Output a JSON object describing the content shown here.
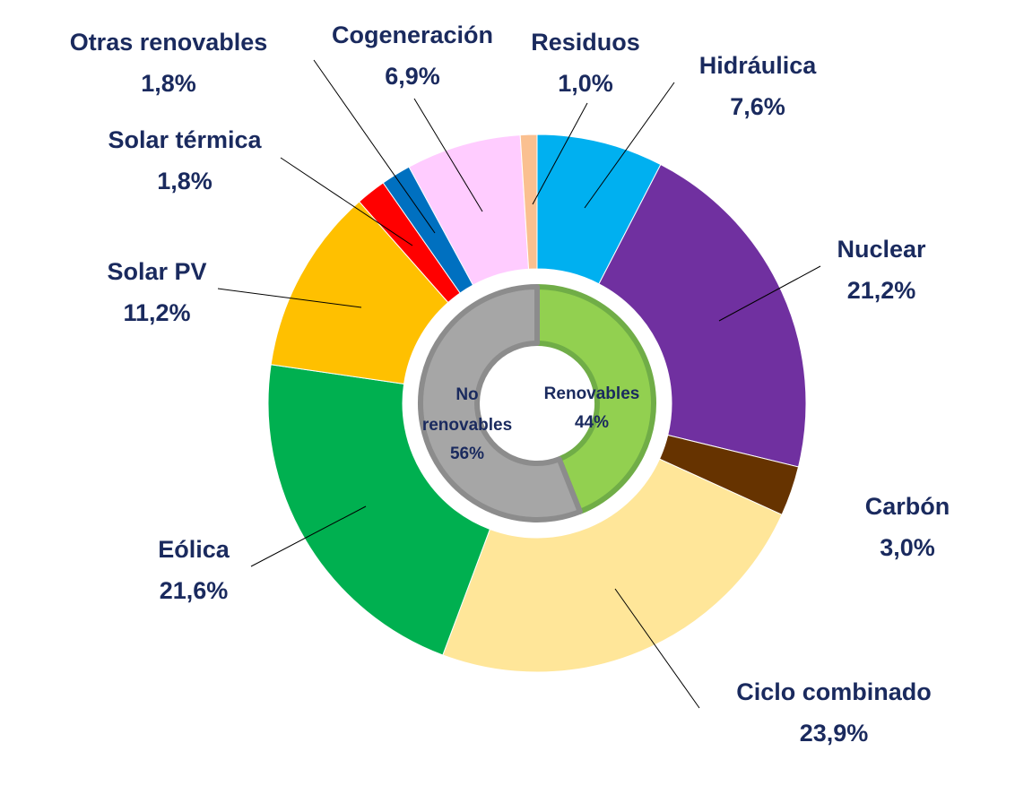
{
  "chart_data": {
    "type": "donut",
    "outer_ring": [
      {
        "label": "Hidráulica",
        "value_text": "7,6%",
        "value": 7.6,
        "color": "#00b0f0"
      },
      {
        "label": "Nuclear",
        "value_text": "21,2%",
        "value": 21.2,
        "color": "#7030a0"
      },
      {
        "label": "Carbón",
        "value_text": "3,0%",
        "value": 3.0,
        "color": "#663300"
      },
      {
        "label": "Ciclo combinado",
        "value_text": "23,9%",
        "value": 23.9,
        "color": "#ffe699"
      },
      {
        "label": "Eólica",
        "value_text": "21,6%",
        "value": 21.6,
        "color": "#00b050"
      },
      {
        "label": "Solar PV",
        "value_text": "11,2%",
        "value": 11.2,
        "color": "#ffc000"
      },
      {
        "label": "Solar térmica",
        "value_text": "1,8%",
        "value": 1.8,
        "color": "#ff0000"
      },
      {
        "label": "Otras renovables",
        "value_text": "1,8%",
        "value": 1.8,
        "color": "#0070c0"
      },
      {
        "label": "Cogeneración",
        "value_text": "6,9%",
        "value": 6.9,
        "color": "#ffccff"
      },
      {
        "label": "Residuos",
        "value_text": "1,0%",
        "value": 1.0,
        "color": "#fac090"
      }
    ],
    "inner_ring": [
      {
        "label": "Renovables",
        "value_text": "44%",
        "value": 44,
        "color": "#92d050",
        "border": "#70ad47"
      },
      {
        "label": "No renovables",
        "value_text": "56%",
        "value": 56,
        "color": "#a6a6a6",
        "border": "#8c8c8c"
      }
    ],
    "label_color": "#1a2a5e",
    "start_angle_deg": 0,
    "direction": "clockwise"
  }
}
